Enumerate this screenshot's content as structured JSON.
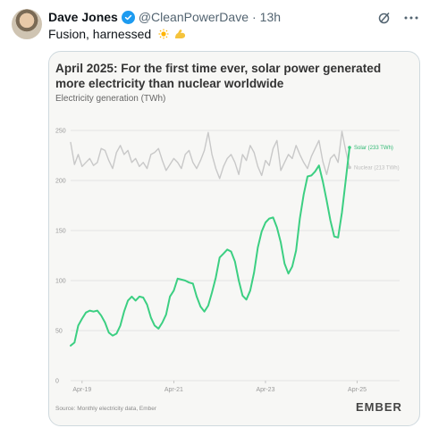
{
  "post": {
    "author_name": "Dave Jones",
    "handle": "@CleanPowerDave",
    "separator": "·",
    "time_ago": "13h",
    "text": "Fusion, harnessed"
  },
  "media": {
    "headline": "April 2025: For the first time ever, solar power generated more electricity than nuclear worldwide",
    "subtitle": "Electricity generation (TWh)",
    "source_note": "Source: Monthly electricity data, Ember",
    "logo_text": "EMBER"
  },
  "chart_data": {
    "type": "line",
    "title": "April 2025: For the first time ever, solar power generated more electricity than nuclear worldwide",
    "ylabel": "Electricity generation (TWh)",
    "xlabel": "",
    "ylim": [
      0,
      250
    ],
    "yticks": [
      0,
      50,
      100,
      150,
      200,
      250
    ],
    "xticks": [
      "Apr-19",
      "Apr-21",
      "Apr-23",
      "Apr-25"
    ],
    "x_start": "Jan-19",
    "grid": true,
    "legend": "inline-right",
    "series": [
      {
        "name": "Solar (233 TWh)",
        "color": "#3ccf82",
        "values": [
          35,
          38,
          55,
          62,
          68,
          70,
          69,
          70,
          65,
          58,
          48,
          45,
          47,
          55,
          69,
          80,
          84,
          80,
          84,
          83,
          76,
          63,
          55,
          52,
          58,
          66,
          84,
          90,
          102,
          101,
          100,
          98,
          97,
          84,
          74,
          69,
          75,
          88,
          103,
          123,
          127,
          131,
          129,
          119,
          100,
          85,
          81,
          90,
          108,
          133,
          149,
          158,
          162,
          163,
          153,
          138,
          117,
          107,
          114,
          130,
          162,
          186,
          204,
          205,
          209,
          215,
          199,
          180,
          160,
          144,
          143,
          168,
          200,
          233
        ]
      },
      {
        "name": "Nuclear (213 TWh)",
        "color": "#c8c8c8",
        "values": [
          238,
          216,
          226,
          214,
          218,
          222,
          215,
          218,
          232,
          230,
          220,
          212,
          228,
          235,
          226,
          230,
          218,
          222,
          214,
          218,
          212,
          226,
          228,
          232,
          220,
          210,
          216,
          222,
          218,
          212,
          226,
          230,
          218,
          212,
          220,
          230,
          248,
          226,
          212,
          202,
          214,
          222,
          226,
          218,
          206,
          226,
          220,
          235,
          228,
          214,
          205,
          220,
          215,
          232,
          240,
          210,
          218,
          226,
          222,
          235,
          226,
          218,
          212,
          224,
          232,
          240,
          219,
          206,
          222,
          226,
          218,
          249,
          230,
          213
        ]
      }
    ]
  },
  "colors": {
    "verified_blue": "#1d9bf0",
    "solar_green": "#3ccf82",
    "nuclear_grey": "#c8c8c8"
  },
  "icons": {
    "verified": "verified-badge-icon",
    "grok": "grok-icon",
    "more": "more-icon",
    "sun": "sun-emoji-icon",
    "flex": "flexed-biceps-emoji-icon"
  }
}
